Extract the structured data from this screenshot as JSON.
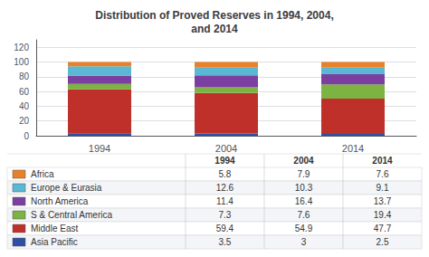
{
  "chart_data": {
    "type": "bar",
    "title": "Distribution of Proved Reserves in 1994, 2004,\nand 2014",
    "categories": [
      "1994",
      "2004",
      "2014"
    ],
    "series": [
      {
        "name": "Asia Pacific",
        "color": "#2E4FA3",
        "values": [
          3.5,
          3.0,
          2.5
        ]
      },
      {
        "name": "Middle East",
        "color": "#C0302A",
        "values": [
          59.4,
          54.9,
          47.7
        ]
      },
      {
        "name": "S & Central America",
        "color": "#7CB342",
        "values": [
          7.3,
          7.6,
          19.4
        ]
      },
      {
        "name": "North America",
        "color": "#7B3FA0",
        "values": [
          11.4,
          16.4,
          13.7
        ]
      },
      {
        "name": "Europe & Eurasia",
        "color": "#5BB8D4",
        "values": [
          12.6,
          10.3,
          9.1
        ]
      },
      {
        "name": "Africa",
        "color": "#E8822A",
        "values": [
          5.8,
          7.9,
          7.6
        ]
      }
    ],
    "stacked": true,
    "ylim": [
      0,
      130
    ],
    "yticks": [
      0,
      20,
      40,
      60,
      80,
      100,
      120
    ],
    "grid": true,
    "legend": "bottom"
  }
}
